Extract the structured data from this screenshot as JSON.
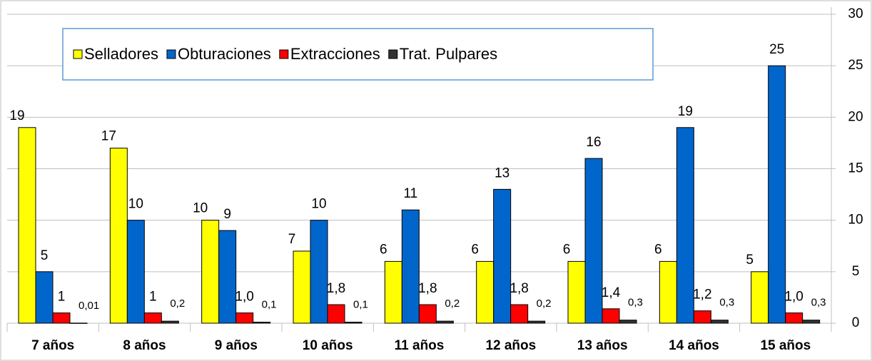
{
  "chart_data": {
    "type": "bar",
    "categories": [
      "7 años",
      "8 años",
      "9 años",
      "10 años",
      "11 años",
      "12 años",
      "13 años",
      "14 años",
      "15 años"
    ],
    "series": [
      {
        "name": "Selladores",
        "color": "#ffff00",
        "values": [
          19,
          17,
          10,
          7,
          6,
          6,
          6,
          6,
          5
        ]
      },
      {
        "name": "Obturaciones",
        "color": "#0066cc",
        "values": [
          5,
          10,
          9,
          10,
          11,
          13,
          16,
          19,
          25
        ]
      },
      {
        "name": "Extracciones",
        "color": "#ff0000",
        "values": [
          1,
          1,
          1.0,
          1.8,
          1.8,
          1.8,
          1.4,
          1.2,
          1.0
        ],
        "value_labels": [
          "1",
          "1",
          "1,0",
          "1,8",
          "1,8",
          "1,8",
          "1,4",
          "1,2",
          "1,0"
        ]
      },
      {
        "name": "Trat. Pulpares",
        "color": "#333333",
        "values": [
          0.01,
          0.2,
          0.1,
          0.1,
          0.2,
          0.2,
          0.3,
          0.3,
          0.3
        ],
        "value_labels": [
          "0,01",
          "0,2",
          "0,1",
          "0,1",
          "0,2",
          "0,2",
          "0,3",
          "0,3",
          "0,3"
        ]
      }
    ],
    "ylim": [
      0,
      30
    ],
    "yticks": [
      0,
      5,
      10,
      15,
      20,
      25,
      30
    ],
    "grid": true,
    "legend": "top"
  }
}
